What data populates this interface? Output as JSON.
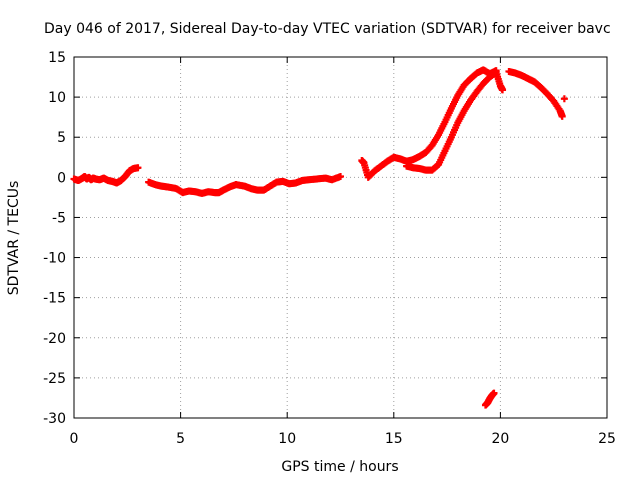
{
  "chart_data": {
    "type": "scatter",
    "title": "Day 046 of 2017, Sidereal Day-to-day VTEC variation (SDTVAR) for receiver bavc",
    "xlabel": "GPS time / hours",
    "ylabel": "SDTVAR / TECUs",
    "xlim": [
      0,
      25
    ],
    "ylim": [
      -30,
      15
    ],
    "xticks": [
      0,
      5,
      10,
      15,
      20,
      25
    ],
    "yticks": [
      -30,
      -25,
      -20,
      -15,
      -10,
      -5,
      0,
      5,
      10,
      15
    ],
    "grid": true,
    "marker": "+",
    "color": "#ff0000",
    "series": [
      {
        "name": "SDTVAR",
        "points": [
          [
            0.0,
            -0.2
          ],
          [
            0.2,
            -0.4
          ],
          [
            0.4,
            -0.1
          ],
          [
            0.5,
            0.1
          ],
          [
            0.6,
            -0.2
          ],
          [
            0.7,
            0.0
          ],
          [
            0.8,
            -0.3
          ],
          [
            0.9,
            -0.1
          ],
          [
            1.0,
            -0.2
          ],
          [
            1.2,
            -0.3
          ],
          [
            1.4,
            -0.1
          ],
          [
            1.6,
            -0.4
          ],
          [
            1.8,
            -0.5
          ],
          [
            2.0,
            -0.7
          ],
          [
            2.2,
            -0.4
          ],
          [
            2.4,
            0.1
          ],
          [
            2.6,
            0.8
          ],
          [
            2.8,
            1.1
          ],
          [
            3.0,
            1.2
          ],
          [
            3.5,
            -0.6
          ],
          [
            3.8,
            -0.9
          ],
          [
            4.1,
            -1.1
          ],
          [
            4.4,
            -1.2
          ],
          [
            4.8,
            -1.4
          ],
          [
            5.1,
            -1.9
          ],
          [
            5.4,
            -1.7
          ],
          [
            5.7,
            -1.8
          ],
          [
            6.0,
            -2.0
          ],
          [
            6.3,
            -1.8
          ],
          [
            6.6,
            -1.9
          ],
          [
            6.8,
            -1.9
          ],
          [
            7.0,
            -1.6
          ],
          [
            7.3,
            -1.2
          ],
          [
            7.6,
            -0.9
          ],
          [
            8.0,
            -1.1
          ],
          [
            8.3,
            -1.4
          ],
          [
            8.6,
            -1.6
          ],
          [
            8.9,
            -1.6
          ],
          [
            9.2,
            -1.1
          ],
          [
            9.5,
            -0.6
          ],
          [
            9.8,
            -0.5
          ],
          [
            10.1,
            -0.8
          ],
          [
            10.4,
            -0.7
          ],
          [
            10.7,
            -0.4
          ],
          [
            11.0,
            -0.3
          ],
          [
            11.4,
            -0.2
          ],
          [
            11.8,
            -0.1
          ],
          [
            12.1,
            -0.3
          ],
          [
            12.5,
            0.1
          ],
          [
            13.5,
            2.1
          ],
          [
            13.6,
            1.8
          ],
          [
            13.8,
            0.0
          ],
          [
            14.1,
            0.8
          ],
          [
            14.4,
            1.4
          ],
          [
            14.7,
            2.0
          ],
          [
            15.0,
            2.5
          ],
          [
            15.3,
            2.3
          ],
          [
            15.6,
            2.0
          ],
          [
            15.9,
            2.2
          ],
          [
            16.2,
            2.6
          ],
          [
            16.5,
            3.1
          ],
          [
            16.8,
            4.0
          ],
          [
            17.1,
            5.3
          ],
          [
            17.4,
            6.9
          ],
          [
            17.7,
            8.6
          ],
          [
            18.0,
            10.2
          ],
          [
            18.3,
            11.5
          ],
          [
            18.6,
            12.3
          ],
          [
            18.9,
            13.0
          ],
          [
            19.2,
            13.4
          ],
          [
            19.5,
            12.9
          ],
          [
            19.8,
            13.3
          ],
          [
            15.6,
            1.4
          ],
          [
            15.9,
            1.2
          ],
          [
            16.2,
            1.1
          ],
          [
            16.5,
            0.9
          ],
          [
            16.8,
            0.9
          ],
          [
            17.1,
            1.6
          ],
          [
            17.4,
            3.3
          ],
          [
            17.7,
            5.0
          ],
          [
            18.0,
            6.8
          ],
          [
            18.3,
            8.3
          ],
          [
            18.6,
            9.6
          ],
          [
            18.9,
            10.7
          ],
          [
            19.2,
            11.7
          ],
          [
            19.5,
            12.5
          ],
          [
            19.8,
            13.1
          ],
          [
            20.0,
            11.4
          ],
          [
            20.1,
            10.9
          ],
          [
            20.4,
            13.2
          ],
          [
            20.7,
            13.0
          ],
          [
            21.0,
            12.7
          ],
          [
            21.3,
            12.3
          ],
          [
            21.6,
            11.9
          ],
          [
            21.9,
            11.2
          ],
          [
            22.2,
            10.4
          ],
          [
            22.5,
            9.5
          ],
          [
            22.8,
            8.3
          ],
          [
            22.9,
            7.6
          ],
          [
            23.0,
            9.8
          ],
          [
            19.3,
            -28.4
          ],
          [
            19.4,
            -28.1
          ],
          [
            19.5,
            -27.6
          ],
          [
            19.6,
            -27.2
          ],
          [
            19.7,
            -26.9
          ]
        ]
      }
    ]
  }
}
